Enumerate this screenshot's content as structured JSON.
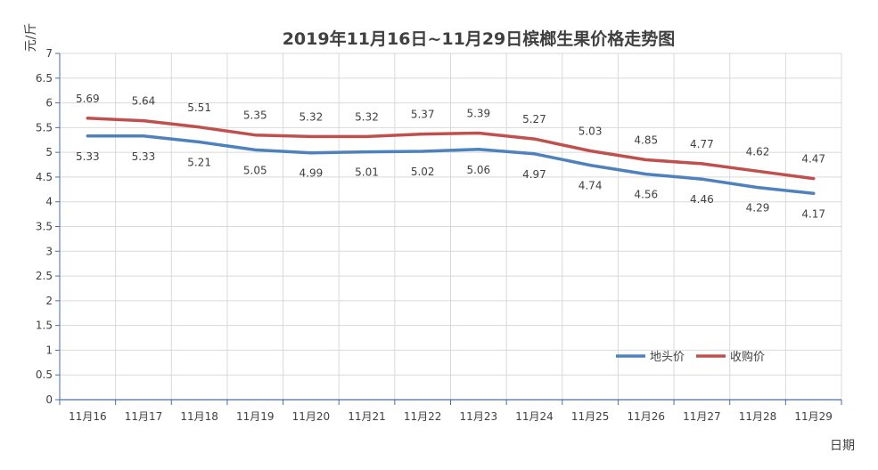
{
  "chart_data": {
    "type": "line",
    "title": "2019年11月16日~11月29日槟榔生果价格走势图",
    "xlabel": "日期",
    "ylabel": "元/斤",
    "ylim": [
      0,
      7
    ],
    "y_ticks": [
      "0",
      "0.5",
      "1",
      "1.5",
      "2",
      "2.5",
      "3",
      "3.5",
      "4",
      "4.5",
      "5",
      "5.5",
      "6",
      "6.5",
      "7"
    ],
    "grid": true,
    "legend_position": "bottom-right",
    "categories": [
      "11月16",
      "11月17",
      "11月18",
      "11月19",
      "11月20",
      "11月21",
      "11月22",
      "11月23",
      "11月24",
      "11月25",
      "11月26",
      "11月27",
      "11月28",
      "11月29"
    ],
    "series": [
      {
        "name": "地头价",
        "color": "#4f81bd",
        "values": [
          5.33,
          5.33,
          5.21,
          5.05,
          4.99,
          5.01,
          5.02,
          5.06,
          4.97,
          4.74,
          4.56,
          4.46,
          4.29,
          4.17
        ],
        "labels": [
          "5.33",
          "5.33",
          "5.21",
          "5.05",
          "4.99",
          "5.01",
          "5.02",
          "5.06",
          "4.97",
          "4.74",
          "4.56",
          "4.46",
          "4.29",
          "4.17"
        ]
      },
      {
        "name": "收购价",
        "color": "#c0504d",
        "values": [
          5.69,
          5.64,
          5.51,
          5.35,
          5.32,
          5.32,
          5.37,
          5.39,
          5.27,
          5.03,
          4.85,
          4.77,
          4.62,
          4.47
        ],
        "labels": [
          "5.69",
          "5.64",
          "5.51",
          "5.35",
          "5.32",
          "5.32",
          "5.37",
          "5.39",
          "5.27",
          "5.03",
          "4.85",
          "4.77",
          "4.62",
          "4.47"
        ]
      }
    ]
  }
}
